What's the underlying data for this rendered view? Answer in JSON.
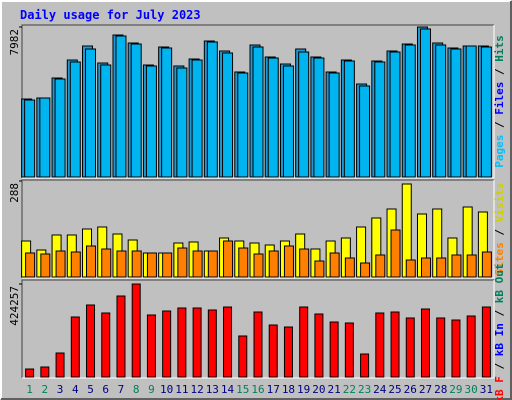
{
  "chart_data": [
    {
      "type": "bar",
      "title": "Daily usage for July 2023",
      "legend": [
        "Pages",
        "Files",
        "Hits"
      ],
      "legend_colors": [
        "#00c0ff",
        "#0000ff",
        "#00805c"
      ],
      "separator": "/",
      "ylim": [
        0,
        7982
      ],
      "yticks": [
        7982
      ],
      "series": [
        {
          "color": "#1c9ad6",
          "values": [
            4150,
            4204,
            5268,
            6226,
            6971,
            6066,
            7556,
            7131,
            5960,
            6918,
            5907,
            6279,
            7237,
            6705,
            5588,
            7024,
            6386,
            6013,
            6811,
            6386,
            5588,
            6226,
            4949,
            6173,
            6705,
            7077,
            7982,
            7131,
            6865,
            6971,
            6971
          ]
        },
        {
          "color": "#00b4f0",
          "values": [
            4097,
            4204,
            5215,
            6120,
            6811,
            5960,
            7503,
            7077,
            5907,
            6865,
            5800,
            6226,
            7184,
            6599,
            5534,
            6918,
            6332,
            5907,
            6652,
            6332,
            5534,
            6173,
            4842,
            6120,
            6652,
            7024,
            7876,
            7024,
            6811,
            6971,
            6918
          ]
        }
      ]
    },
    {
      "type": "bar",
      "legend": [
        "Sites",
        "Visits"
      ],
      "legend_colors": [
        "#ff8000",
        "#d0d000"
      ],
      "separator": "/",
      "ylim": [
        0,
        288
      ],
      "yticks": [
        288
      ],
      "series": [
        {
          "color": "#ffff00",
          "values": [
            108,
            81,
            126,
            126,
            144,
            150,
            129,
            111,
            72,
            72,
            102,
            105,
            78,
            117,
            108,
            102,
            96,
            108,
            129,
            84,
            108,
            117,
            150,
            177,
            204,
            279,
            189,
            204,
            117,
            210,
            195
          ]
        },
        {
          "color": "#ff8000",
          "values": [
            72,
            69,
            78,
            75,
            93,
            84,
            78,
            78,
            72,
            72,
            87,
            78,
            78,
            108,
            87,
            69,
            78,
            93,
            84,
            48,
            72,
            57,
            42,
            66,
            141,
            51,
            57,
            57,
            66,
            66,
            75
          ]
        }
      ]
    },
    {
      "type": "bar",
      "legend": [
        "kB F",
        "kB In",
        "kB Out"
      ],
      "legend_colors": [
        "#ff0000",
        "#0000ff",
        "#00805c"
      ],
      "separator": "/",
      "ylim": [
        0,
        424257
      ],
      "yticks": [
        424257
      ],
      "categories": [
        "1",
        "2",
        "3",
        "4",
        "5",
        "6",
        "7",
        "8",
        "9",
        "10",
        "11",
        "12",
        "13",
        "14",
        "15",
        "16",
        "17",
        "18",
        "19",
        "20",
        "21",
        "22",
        "23",
        "24",
        "25",
        "26",
        "27",
        "28",
        "29",
        "30",
        "31"
      ],
      "category_colors": [
        "#00805c",
        "#00805c",
        "#000080",
        "#000080",
        "#000080",
        "#000080",
        "#000080",
        "#00805c",
        "#00805c",
        "#000080",
        "#000080",
        "#000080",
        "#000080",
        "#000080",
        "#00805c",
        "#00805c",
        "#000080",
        "#000080",
        "#000080",
        "#000080",
        "#000080",
        "#00805c",
        "#00805c",
        "#000080",
        "#000080",
        "#000080",
        "#000080",
        "#000080",
        "#00805c",
        "#00805c",
        "#000080"
      ],
      "series": [
        {
          "color": "#ff0000",
          "values": [
            36500,
            45600,
            109500,
            273700,
            328500,
            292000,
            369500,
            424257,
            282900,
            301100,
            314800,
            314800,
            305700,
            319300,
            187100,
            296500,
            237200,
            228100,
            319300,
            287400,
            250900,
            246400,
            104900,
            292000,
            296500,
            269200,
            310200,
            269200,
            260000,
            278300,
            319300
          ]
        }
      ]
    }
  ]
}
